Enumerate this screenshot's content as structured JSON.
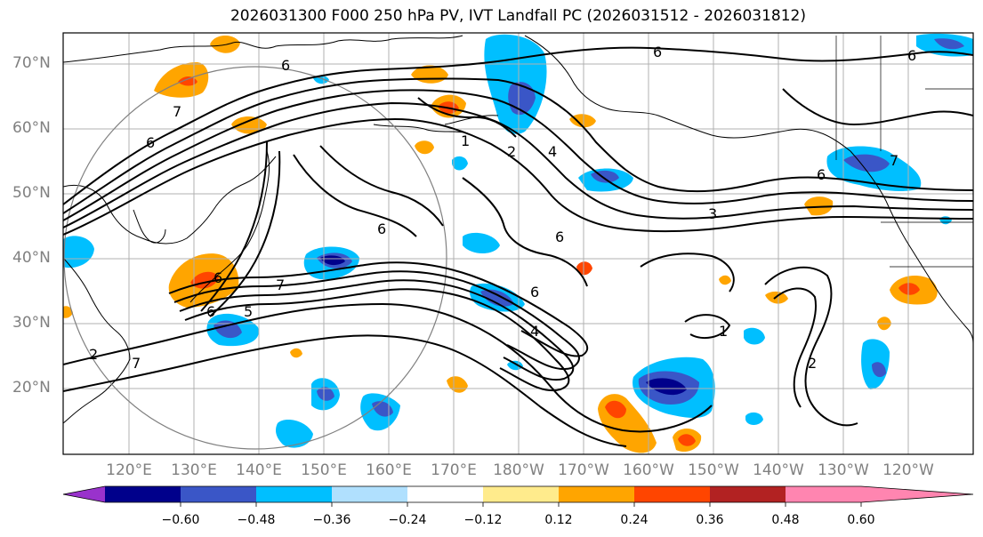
{
  "title": "2026031300 F000 250 hPa PV, IVT Landfall PC (2026031512 - 2026031812)",
  "lat_labels": [
    "70°N",
    "60°N",
    "50°N",
    "40°N",
    "30°N",
    "20°N"
  ],
  "lon_labels": [
    "120°E",
    "130°E",
    "140°E",
    "150°E",
    "160°E",
    "170°E",
    "180°W",
    "170°W",
    "160°W",
    "150°W",
    "140°W",
    "130°W",
    "120°W"
  ],
  "contour_labels": [
    "6",
    "7",
    "6",
    "1",
    "2",
    "4",
    "6",
    "6",
    "6",
    "7",
    "6",
    "3",
    "6",
    "7",
    "2",
    "4",
    "6",
    "7",
    "6",
    "5",
    "1",
    "2",
    "6"
  ],
  "colorbar": {
    "tick_labels": [
      "−0.60",
      "−0.48",
      "−0.36",
      "−0.24",
      "−0.12",
      "0.12",
      "0.24",
      "0.36",
      "0.48",
      "0.60"
    ],
    "colors": [
      "#9932cc",
      "#00008b",
      "#3a56c7",
      "#00bfff",
      "#b0e0fe",
      "#ffffff",
      "#ffeb8c",
      "#ffa500",
      "#ff4500",
      "#b22222",
      "#ff85b0"
    ]
  },
  "colors": {
    "coastline": "#000000",
    "pv_contour": "#000000",
    "grid": "#b0b0b0",
    "circle": "#808080",
    "axis_label": "#808080"
  }
}
